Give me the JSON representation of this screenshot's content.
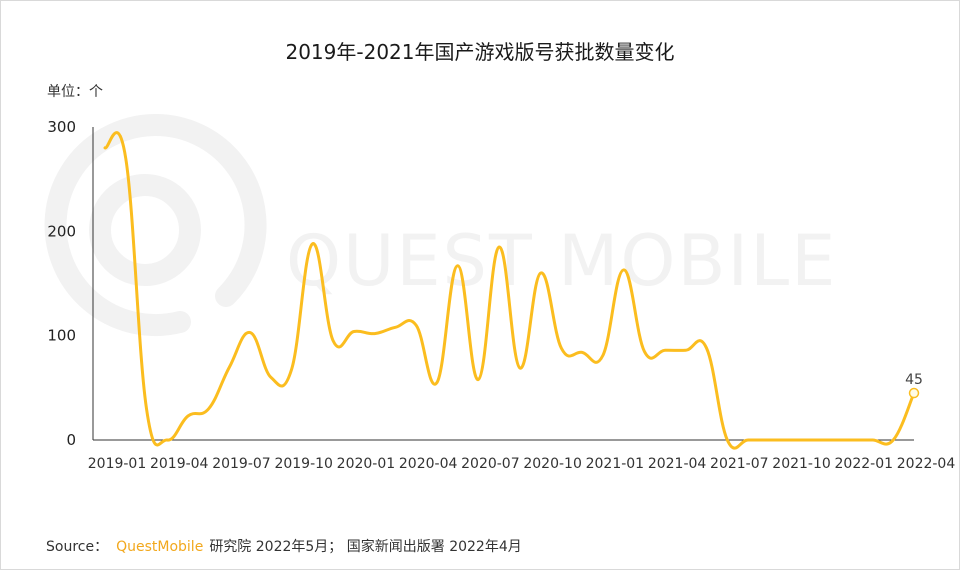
{
  "chart_data": {
    "type": "line",
    "title": "2019年-2021年国产游戏版号获批数量变化",
    "unit_label": "单位：个",
    "ylim": [
      0,
      300
    ],
    "yticks": [
      "0",
      "100",
      "200",
      "300"
    ],
    "xtick_labels": [
      "2019-01",
      "2019-04",
      "2019-07",
      "2019-10",
      "2020-01",
      "2020-04",
      "2020-07",
      "2020-10",
      "2021-01",
      "2021-04",
      "2021-07",
      "2021-10",
      "2022-01",
      "2022-04"
    ],
    "x": [
      "2019-01",
      "2019-02",
      "2019-03",
      "2019-04",
      "2019-05",
      "2019-06",
      "2019-07",
      "2019-08",
      "2019-09",
      "2019-10",
      "2019-11",
      "2019-12",
      "2020-01",
      "2020-02",
      "2020-03",
      "2020-04",
      "2020-05",
      "2020-06",
      "2020-07",
      "2020-08",
      "2020-09",
      "2020-10",
      "2020-11",
      "2020-12",
      "2021-01",
      "2021-02",
      "2021-03",
      "2021-04",
      "2021-05",
      "2021-06",
      "2021-07",
      "2021-08",
      "2021-09",
      "2021-10",
      "2021-11",
      "2021-12",
      "2022-01",
      "2022-02",
      "2022-03",
      "2022-04"
    ],
    "series": [
      {
        "values": [
          280,
          270,
          30,
          0,
          23,
          30,
          70,
          103,
          60,
          68,
          188,
          95,
          104,
          102,
          108,
          110,
          55,
          167,
          58,
          185,
          69,
          160,
          88,
          84,
          81,
          163,
          85,
          86,
          86,
          88,
          0,
          0,
          0,
          0,
          0,
          0,
          0,
          0,
          0,
          45
        ]
      }
    ],
    "last_value_label": "45",
    "line_color": "#fbbd1f",
    "axis_color": "#333333",
    "watermark": "QUEST MOBILE",
    "grid": false
  },
  "footer": {
    "source_label": "Source：",
    "brand": "QuestMobile",
    "text": "研究院 2022年5月； 国家新闻出版署 2022年4月"
  }
}
